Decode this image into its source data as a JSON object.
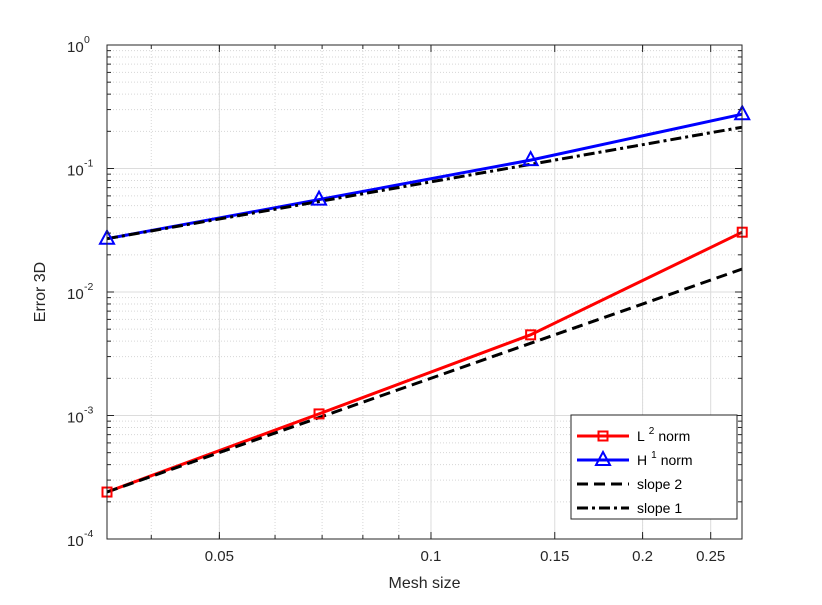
{
  "chart_data": {
    "type": "line",
    "xlabel": "Mesh size",
    "ylabel": "Error 3D",
    "xscale": "log",
    "yscale": "log",
    "xlim": [
      0.0346,
      0.277
    ],
    "ylim": [
      0.0001,
      1
    ],
    "grid": true,
    "minor_grid": true,
    "x_ticks": [
      0.05,
      0.1,
      0.15,
      0.2,
      0.25
    ],
    "x_tick_labels": [
      "0.05",
      "0.1",
      "0.15",
      "0.2",
      "0.25"
    ],
    "y_ticks": [
      0.0001,
      0.001,
      0.01,
      0.1,
      1
    ],
    "y_tick_labels": [
      {
        "base": "10",
        "exp": "-4"
      },
      {
        "base": "10",
        "exp": "-3"
      },
      {
        "base": "10",
        "exp": "-2"
      },
      {
        "base": "10",
        "exp": "-1"
      },
      {
        "base": "10",
        "exp": "0"
      }
    ],
    "legend_position": "bottom-right",
    "series": [
      {
        "name": "L",
        "sup": "2",
        "suffix": " norm",
        "color": "#ff0000",
        "style": "solid",
        "marker": "square",
        "x": [
          0.0346,
          0.0693,
          0.1386,
          0.2772
        ],
        "y": [
          0.00024,
          0.00103,
          0.0045,
          0.0305
        ]
      },
      {
        "name": "H",
        "sup": "1",
        "suffix": " norm",
        "color": "#0000ff",
        "style": "solid",
        "marker": "triangle",
        "x": [
          0.0346,
          0.0693,
          0.1386,
          0.2772
        ],
        "y": [
          0.027,
          0.056,
          0.117,
          0.275
        ]
      },
      {
        "name": "slope 2",
        "sup": "",
        "suffix": "",
        "color": "#000000",
        "style": "dashed",
        "marker": "none",
        "x": [
          0.0346,
          0.2772
        ],
        "y": [
          0.00024,
          0.01536
        ]
      },
      {
        "name": "slope 1",
        "sup": "",
        "suffix": "",
        "color": "#000000",
        "style": "dashdot",
        "marker": "none",
        "x": [
          0.0346,
          0.2772
        ],
        "y": [
          0.027,
          0.216
        ]
      }
    ]
  }
}
